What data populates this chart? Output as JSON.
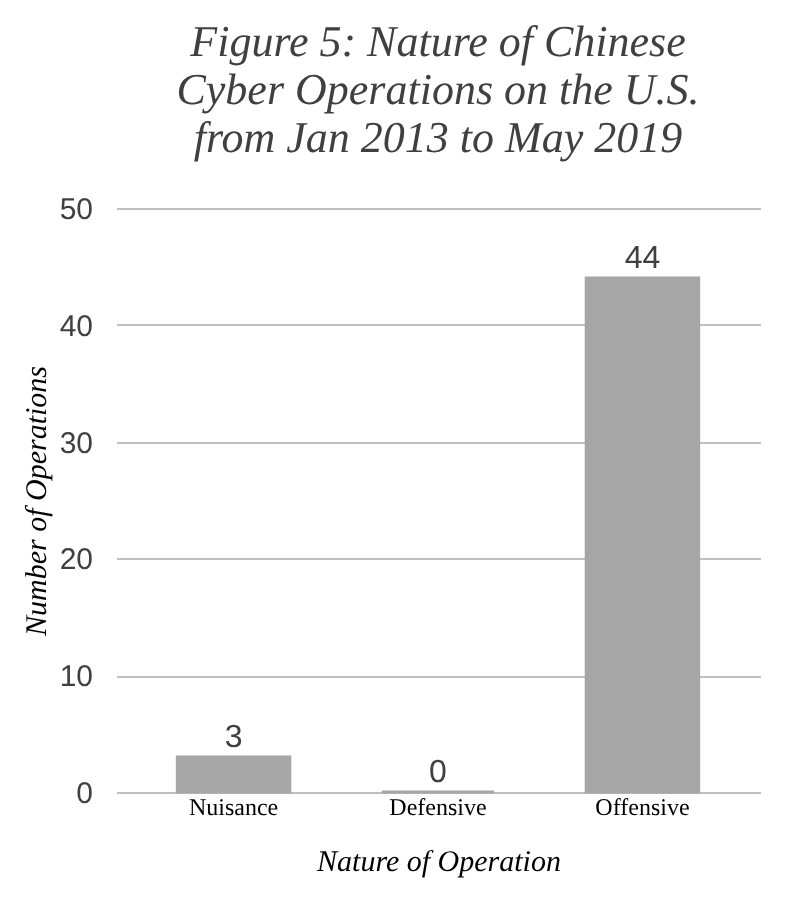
{
  "chart_data": {
    "type": "bar",
    "title": "Figure 5: Nature of Chinese Cyber Operations on the U.S. from Jan 2013 to May 2019",
    "categories": [
      "Nuisance",
      "Defensive",
      "Offensive"
    ],
    "values": [
      3,
      0,
      44
    ],
    "color": "#a6a6a6",
    "xlabel": "Nature of Operation",
    "ylabel": "Number of Operations",
    "ylim": [
      0,
      50
    ],
    "yticks": [
      0,
      10,
      20,
      30,
      40,
      50
    ],
    "grid": "y",
    "data_labels": true
  }
}
